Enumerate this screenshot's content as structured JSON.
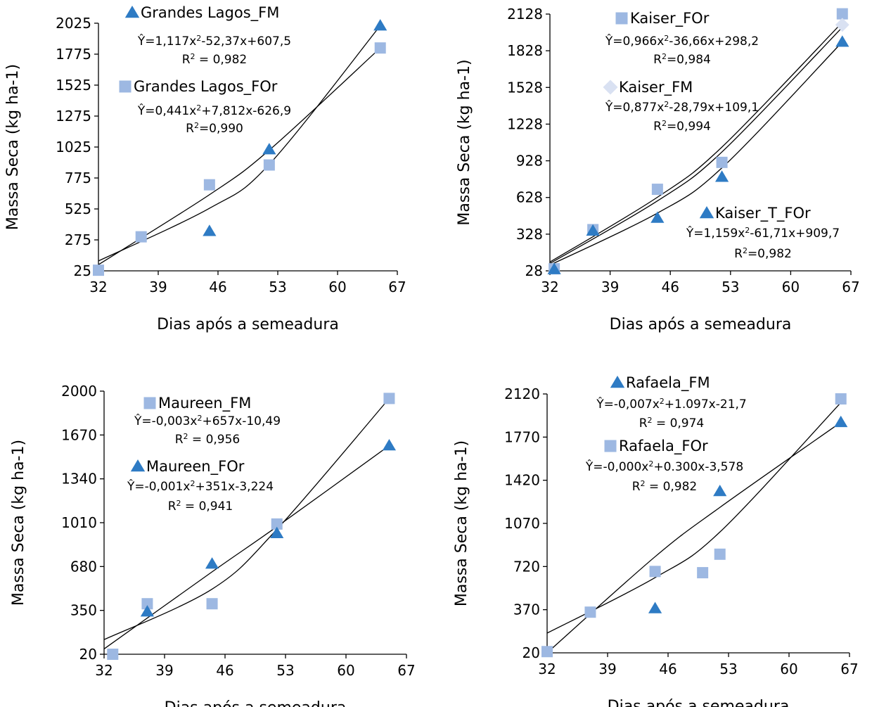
{
  "colors": {
    "triangle": "#2E7BC4",
    "square": "#9DB8E2",
    "diamond": "#D9E1F2",
    "curve": "#000000",
    "axis": "#000000"
  },
  "chart_data": [
    {
      "type": "scatter",
      "ylabel": "Massa Seca (kg ha-1)",
      "xlabel": "Dias após a semeadura",
      "xlim": [
        32,
        67
      ],
      "ylim": [
        25,
        2025
      ],
      "xticks": [
        "32",
        "39",
        "46",
        "53",
        "60",
        "67"
      ],
      "yticks": [
        "25",
        "275",
        "525",
        "775",
        "1025",
        "1275",
        "1525",
        "1775",
        "2025"
      ],
      "series": [
        {
          "name": "Grandes Lagos_FM",
          "marker": "triangle",
          "points": [
            [
              45,
              345
            ],
            [
              52,
              1005
            ],
            [
              65,
              2005
            ]
          ],
          "curve": [
            [
              32,
              105
            ],
            [
              45,
              530
            ],
            [
              52,
              885
            ],
            [
              65,
              2005
            ]
          ],
          "equation": "Ŷ=1,117x²-52,37x+607,5",
          "r2": "R² = 0,982"
        },
        {
          "name": "Grandes Lagos_FOr",
          "marker": "square",
          "points": [
            [
              32,
              30
            ],
            [
              37,
              300
            ],
            [
              45,
              720
            ],
            [
              52,
              880
            ],
            [
              65,
              1825
            ]
          ],
          "curve": [
            [
              32,
              75
            ],
            [
              45,
              640
            ],
            [
              52,
              1000
            ],
            [
              65,
              1825
            ]
          ],
          "equation": "Ŷ=0,441x²+7,812x-626,9",
          "r2": "R²=0,990"
        }
      ]
    },
    {
      "type": "scatter",
      "ylabel": "Massa Seca (kg ha-1)",
      "xlabel": "Dias após a semeadura",
      "xlim": [
        32,
        67
      ],
      "ylim": [
        28,
        2128
      ],
      "xticks": [
        "32",
        "39",
        "46",
        "53",
        "60",
        "67"
      ],
      "yticks": [
        "28",
        "328",
        "628",
        "928",
        "1228",
        "1528",
        "1828",
        "2128"
      ],
      "series": [
        {
          "name": "Kaiser_FOr",
          "marker": "square",
          "points": [
            [
              32.5,
              45
            ],
            [
              37,
              365
            ],
            [
              44.5,
              695
            ],
            [
              52,
              915
            ],
            [
              66,
              2130
            ]
          ],
          "curve": [
            [
              32,
              88
            ],
            [
              44.5,
              600
            ],
            [
              52,
              1000
            ],
            [
              66,
              2020
            ]
          ],
          "equation": "Ŷ=0,966x²-36,66x+298,2",
          "r2": "R²=0,984"
        },
        {
          "name": "Kaiser_FM",
          "marker": "diamond",
          "points": [
            [
              66,
              2040
            ]
          ],
          "curve": [
            [
              32,
              100
            ],
            [
              44.5,
              630
            ],
            [
              52,
              1040
            ],
            [
              66,
              2060
            ]
          ],
          "equation": "Ŷ=0,877x²-28,79x+109,1",
          "r2": "R²=0,994"
        },
        {
          "name": "Kaiser_T_FOr",
          "marker": "triangle",
          "points": [
            [
              32.5,
              40
            ],
            [
              37,
              355
            ],
            [
              44.5,
              460
            ],
            [
              52,
              795
            ],
            [
              66,
              1900
            ]
          ],
          "curve": [
            [
              32,
              75
            ],
            [
              44.5,
              500
            ],
            [
              52,
              870
            ],
            [
              66,
              1900
            ]
          ],
          "equation": "Ŷ=1,159x²-61,71x+909,7",
          "r2": "R²=0,982"
        }
      ]
    },
    {
      "type": "scatter",
      "ylabel": "Massa Seca (kg ha-1)",
      "xlabel": "Dias após a semeadura",
      "xlim": [
        32,
        67
      ],
      "ylim": [
        20,
        2000
      ],
      "xticks": [
        "32",
        "39",
        "46",
        "53",
        "60",
        "67"
      ],
      "yticks": [
        "20",
        "350",
        "680",
        "1010",
        "1340",
        "1670",
        "2000"
      ],
      "series": [
        {
          "name": "Maureen_FM",
          "marker": "square",
          "points": [
            [
              33,
              20
            ],
            [
              37,
              400
            ],
            [
              44.5,
              400
            ],
            [
              52,
              1000
            ],
            [
              65,
              1945
            ]
          ],
          "curve": [
            [
              32,
              130
            ],
            [
              44.5,
              510
            ],
            [
              52,
              960
            ],
            [
              65,
              1945
            ]
          ],
          "equation": "Ŷ=-0,003x²+657x-10,49",
          "r2": "R² = 0,956"
        },
        {
          "name": "Maureen_FOr",
          "marker": "triangle",
          "points": [
            [
              37,
              340
            ],
            [
              44.5,
              700
            ],
            [
              52,
              930
            ],
            [
              65,
              1590
            ]
          ],
          "curve": [
            [
              32,
              60
            ],
            [
              44.5,
              640
            ],
            [
              52,
              980
            ],
            [
              65,
              1590
            ]
          ],
          "equation": "Ŷ=-0,001x²+351x-3,224",
          "r2": "R² = 0,941"
        }
      ]
    },
    {
      "type": "scatter",
      "ylabel": "Massa Seca (kg ha-1)",
      "xlabel": "Dias após a semeadura",
      "xlim": [
        32,
        67
      ],
      "ylim": [
        20,
        2120
      ],
      "xticks": [
        "32",
        "39",
        "46",
        "53",
        "60",
        "67"
      ],
      "yticks": [
        "20",
        "370",
        "720",
        "1070",
        "1420",
        "1770",
        "2120"
      ],
      "series": [
        {
          "name": "Rafaela_FM",
          "marker": "triangle",
          "points": [
            [
              44.5,
              380
            ],
            [
              52,
              1330
            ],
            [
              66,
              1890
            ]
          ],
          "curve": [
            [
              32,
              20
            ],
            [
              44.5,
              800
            ],
            [
              52,
              1200
            ],
            [
              66,
              1890
            ]
          ],
          "equation": "Ŷ=-0,007x²+1.097x-21,7",
          "r2": "R² = 0,974"
        },
        {
          "name": "Rafaela_FOr",
          "marker": "square",
          "points": [
            [
              32,
              30
            ],
            [
              37,
              350
            ],
            [
              44.5,
              680
            ],
            [
              50,
              670
            ],
            [
              52,
              820
            ],
            [
              66,
              2080
            ]
          ],
          "curve": [
            [
              32,
              180
            ],
            [
              44.5,
              630
            ],
            [
              52,
              1000
            ],
            [
              66,
              2050
            ]
          ],
          "equation": "Ŷ=-0,000x²+0.300x-3,578",
          "r2": "R² = 0,982"
        }
      ]
    }
  ]
}
